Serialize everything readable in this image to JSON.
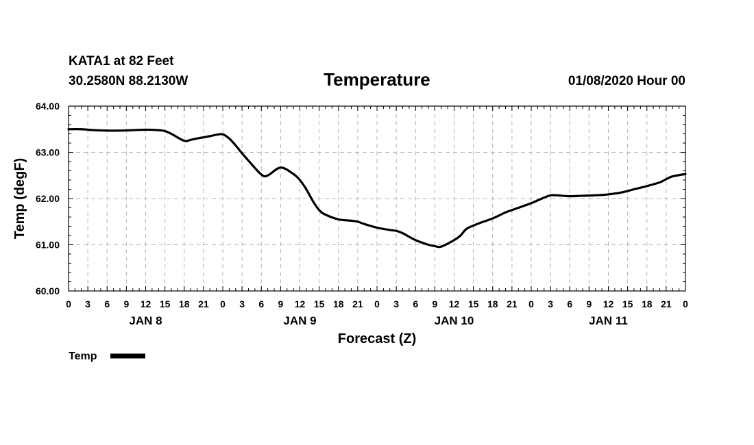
{
  "header": {
    "station": "KATA1 at 82 Feet",
    "location": "30.2580N 88.2130W",
    "title": "Temperature",
    "timestamp": "01/08/2020 Hour 00"
  },
  "legend": {
    "label": "Temp"
  },
  "chart_data": {
    "type": "line",
    "title": "Temperature",
    "xlabel": "Forecast (Z)",
    "ylabel": "Temp (degF)",
    "ylim": [
      60.0,
      64.0
    ],
    "xlim": [
      0,
      96
    ],
    "grid": true,
    "legend_position": "bottom-left",
    "y_ticks": [
      "60.00",
      "61.00",
      "62.00",
      "63.00",
      "64.00"
    ],
    "x_ticks": [
      {
        "hour": 0,
        "label": "0"
      },
      {
        "hour": 3,
        "label": "3"
      },
      {
        "hour": 6,
        "label": "6"
      },
      {
        "hour": 9,
        "label": "9"
      },
      {
        "hour": 12,
        "label": "12"
      },
      {
        "hour": 15,
        "label": "15"
      },
      {
        "hour": 18,
        "label": "18"
      },
      {
        "hour": 21,
        "label": "21"
      },
      {
        "hour": 24,
        "label": "0"
      },
      {
        "hour": 27,
        "label": "3"
      },
      {
        "hour": 30,
        "label": "6"
      },
      {
        "hour": 33,
        "label": "9"
      },
      {
        "hour": 36,
        "label": "12"
      },
      {
        "hour": 39,
        "label": "15"
      },
      {
        "hour": 42,
        "label": "18"
      },
      {
        "hour": 45,
        "label": "21"
      },
      {
        "hour": 48,
        "label": "0"
      },
      {
        "hour": 51,
        "label": "3"
      },
      {
        "hour": 54,
        "label": "6"
      },
      {
        "hour": 57,
        "label": "9"
      },
      {
        "hour": 60,
        "label": "12"
      },
      {
        "hour": 63,
        "label": "15"
      },
      {
        "hour": 66,
        "label": "18"
      },
      {
        "hour": 69,
        "label": "21"
      },
      {
        "hour": 72,
        "label": "0"
      },
      {
        "hour": 75,
        "label": "3"
      },
      {
        "hour": 78,
        "label": "6"
      },
      {
        "hour": 81,
        "label": "9"
      },
      {
        "hour": 84,
        "label": "12"
      },
      {
        "hour": 87,
        "label": "15"
      },
      {
        "hour": 90,
        "label": "18"
      },
      {
        "hour": 93,
        "label": "21"
      },
      {
        "hour": 96,
        "label": "0"
      }
    ],
    "day_labels": [
      {
        "hour": 12,
        "label": "JAN 8"
      },
      {
        "hour": 36,
        "label": "JAN 9"
      },
      {
        "hour": 60,
        "label": "JAN 10"
      },
      {
        "hour": 84,
        "label": "JAN 11"
      }
    ],
    "series": [
      {
        "name": "Temp",
        "x": [
          0,
          2,
          4,
          6,
          8,
          10,
          12,
          14,
          15,
          16,
          18,
          19,
          20,
          22,
          23,
          24,
          25,
          26,
          27,
          28,
          30,
          31,
          33,
          35,
          36,
          37,
          38,
          39,
          40,
          42,
          44,
          45,
          46,
          48,
          50,
          51,
          52,
          54,
          56,
          57,
          58,
          60,
          61,
          62,
          64,
          66,
          68,
          69,
          70,
          72,
          74,
          75,
          76,
          78,
          80,
          82,
          84,
          86,
          88,
          90,
          92,
          93,
          94,
          96
        ],
        "y": [
          63.5,
          63.5,
          63.48,
          63.47,
          63.47,
          63.48,
          63.49,
          63.48,
          63.46,
          63.4,
          63.25,
          63.27,
          63.3,
          63.35,
          63.38,
          63.39,
          63.3,
          63.15,
          62.98,
          62.82,
          62.52,
          62.5,
          62.67,
          62.53,
          62.4,
          62.2,
          61.95,
          61.75,
          61.65,
          61.55,
          61.52,
          61.5,
          61.45,
          61.37,
          61.32,
          61.3,
          61.25,
          61.1,
          61.0,
          60.97,
          60.96,
          61.1,
          61.2,
          61.35,
          61.47,
          61.57,
          61.7,
          61.75,
          61.8,
          61.9,
          62.02,
          62.07,
          62.07,
          62.05,
          62.06,
          62.07,
          62.09,
          62.13,
          62.2,
          62.27,
          62.35,
          62.42,
          62.48,
          62.53
        ]
      }
    ]
  }
}
